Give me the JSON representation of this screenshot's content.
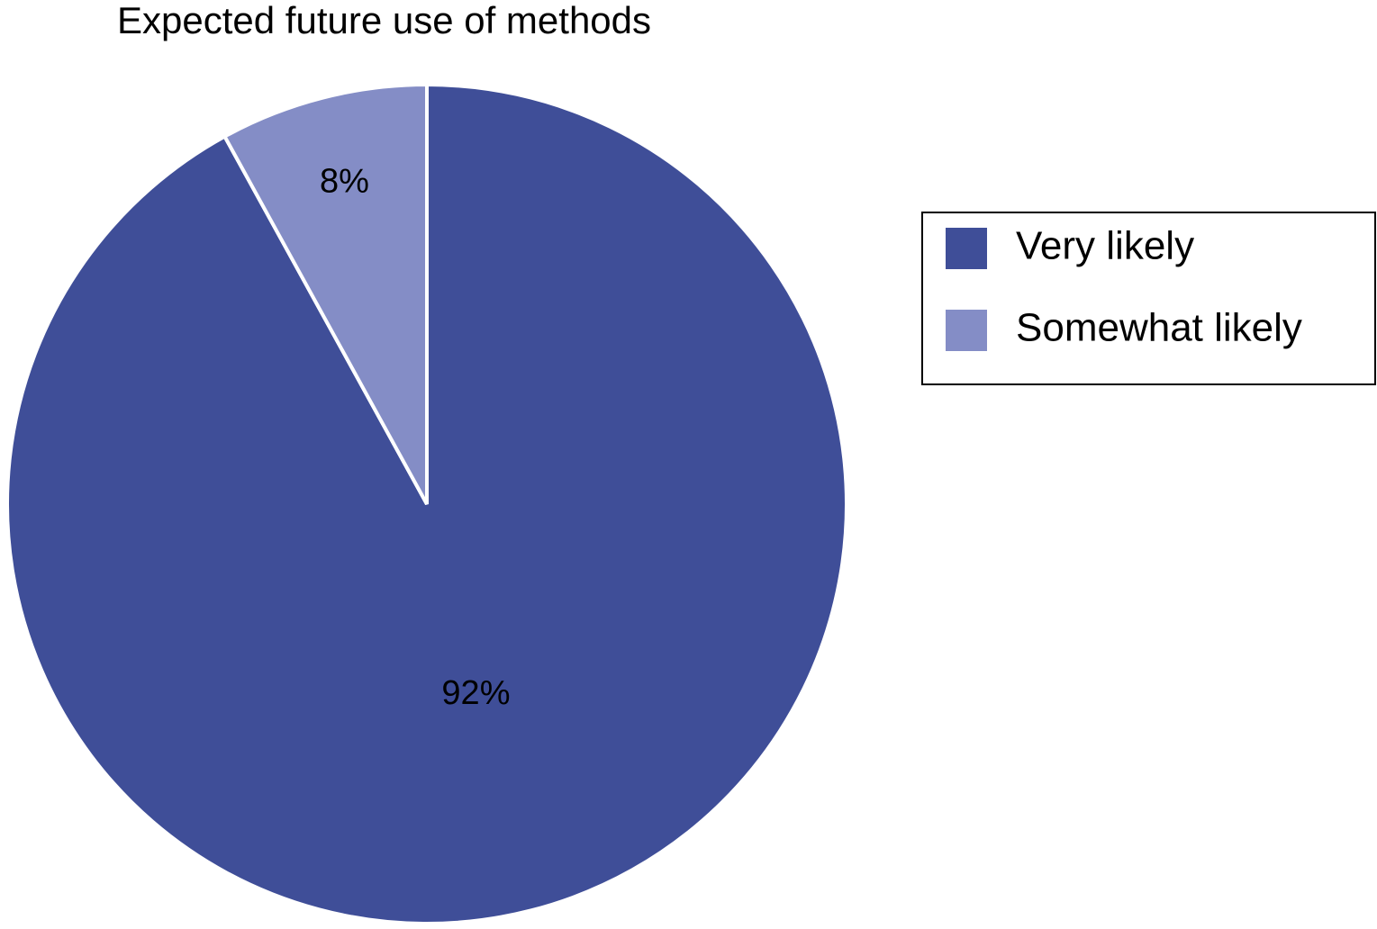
{
  "chart_data": {
    "type": "pie",
    "title": "Expected future use of methods",
    "categories": [
      "Very likely",
      "Somewhat likely"
    ],
    "values": [
      92,
      8
    ],
    "value_labels": [
      "92%",
      "8%"
    ],
    "colors": [
      "#3f4e98",
      "#848dc6"
    ],
    "legend": "right"
  }
}
